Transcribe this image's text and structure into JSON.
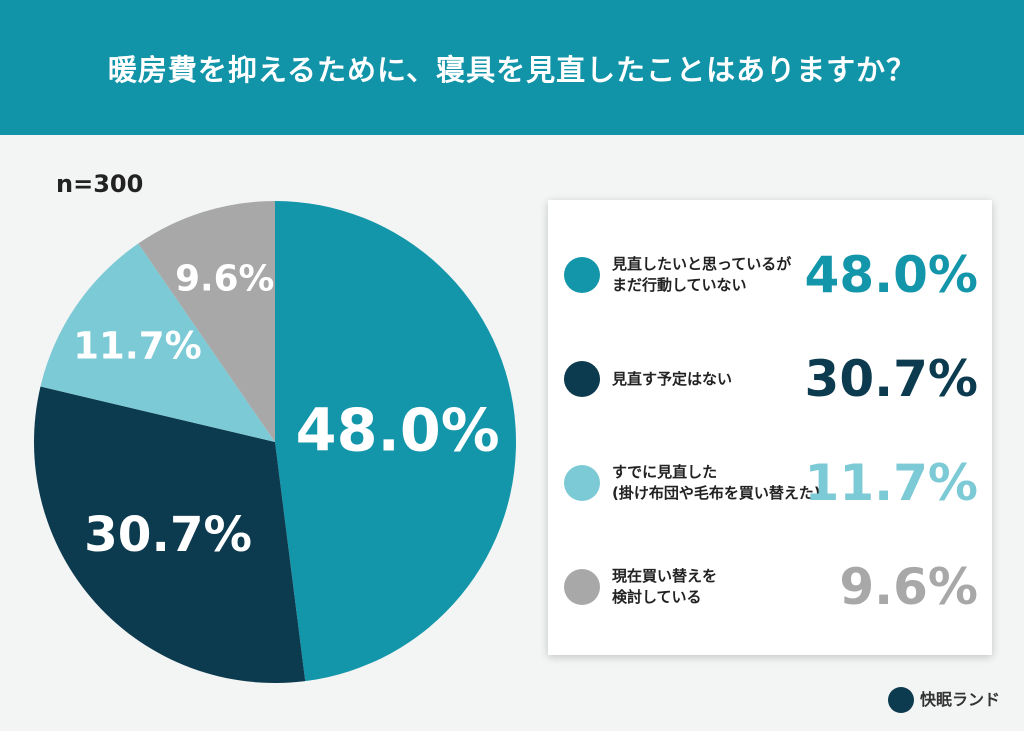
{
  "chart_data": {
    "type": "pie",
    "title": "暖房費を抑えるために、寝具を見直したことはありますか？",
    "subtitle": "n=300",
    "categories": [
      "見直したいと思っているが\nまだ行動していない",
      "見直す予定はない",
      "すでに見直した\n(掛け布団や毛布を買い替えた)",
      "現在買い替えを\n検討している"
    ],
    "values": [
      48.0,
      30.7,
      11.7,
      9.6
    ],
    "value_labels": [
      "48.0%",
      "30.7%",
      "11.7%",
      "9.6%"
    ],
    "colors": [
      "#1496aa",
      "#0c3a4e",
      "#7ccad5",
      "#a8a8a8"
    ],
    "brand": "快眠ランド"
  }
}
